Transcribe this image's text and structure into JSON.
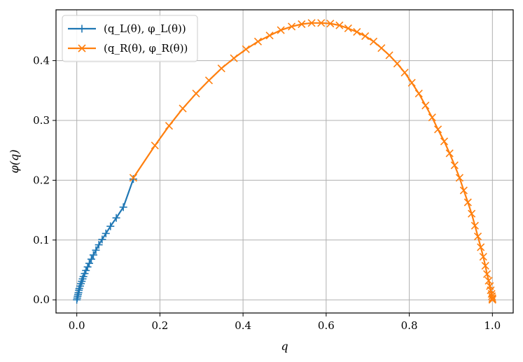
{
  "chart_data": {
    "type": "line",
    "title": "",
    "xlabel": "q",
    "ylabel": "φ(q)",
    "xlim": [
      -0.05,
      1.05
    ],
    "ylim": [
      -0.022,
      0.485
    ],
    "grid": true,
    "legend_position": "top-left",
    "xticks": [
      0.0,
      0.2,
      0.4,
      0.6,
      0.8,
      1.0
    ],
    "xtick_labels": [
      "0.0",
      "0.2",
      "0.4",
      "0.6",
      "0.8",
      "1.0"
    ],
    "yticks": [
      0.0,
      0.1,
      0.2,
      0.3,
      0.4
    ],
    "ytick_labels": [
      "0.0",
      "0.1",
      "0.2",
      "0.3",
      "0.4"
    ],
    "series": [
      {
        "name": "(q_L(θ), φ_L(θ))",
        "color": "#1f77b4",
        "marker": "plus",
        "x": [
          0.0,
          0.001,
          0.002,
          0.003,
          0.004,
          0.005,
          0.006,
          0.008,
          0.01,
          0.012,
          0.014,
          0.016,
          0.019,
          0.022,
          0.026,
          0.03,
          0.035,
          0.04,
          0.046,
          0.053,
          0.061,
          0.07,
          0.081,
          0.095,
          0.112,
          0.136
        ],
        "y": [
          0.0,
          0.003,
          0.006,
          0.009,
          0.012,
          0.016,
          0.019,
          0.023,
          0.027,
          0.031,
          0.035,
          0.039,
          0.044,
          0.049,
          0.055,
          0.061,
          0.068,
          0.075,
          0.083,
          0.092,
          0.101,
          0.111,
          0.123,
          0.137,
          0.155,
          0.202
        ]
      },
      {
        "name": "(q_R(θ), φ_R(θ))",
        "color": "#ff7f0e",
        "marker": "x",
        "x": [
          0.136,
          0.188,
          0.222,
          0.255,
          0.287,
          0.318,
          0.348,
          0.378,
          0.407,
          0.436,
          0.464,
          0.491,
          0.517,
          0.541,
          0.565,
          0.588,
          0.61,
          0.632,
          0.653,
          0.674,
          0.694,
          0.714,
          0.733,
          0.752,
          0.771,
          0.789,
          0.806,
          0.823,
          0.839,
          0.855,
          0.869,
          0.884,
          0.897,
          0.909,
          0.921,
          0.931,
          0.941,
          0.95,
          0.958,
          0.965,
          0.972,
          0.978,
          0.983,
          0.987,
          0.991,
          0.994,
          0.996,
          0.998,
          0.999,
          1.0,
          1.0,
          1.0
        ],
        "y": [
          0.204,
          0.258,
          0.291,
          0.32,
          0.345,
          0.367,
          0.387,
          0.404,
          0.419,
          0.432,
          0.442,
          0.451,
          0.457,
          0.461,
          0.463,
          0.463,
          0.462,
          0.459,
          0.454,
          0.448,
          0.441,
          0.432,
          0.421,
          0.409,
          0.395,
          0.38,
          0.363,
          0.345,
          0.325,
          0.305,
          0.285,
          0.265,
          0.245,
          0.225,
          0.204,
          0.183,
          0.163,
          0.144,
          0.124,
          0.106,
          0.088,
          0.072,
          0.057,
          0.043,
          0.032,
          0.023,
          0.016,
          0.01,
          0.006,
          0.003,
          0.001,
          0.0
        ]
      }
    ]
  }
}
